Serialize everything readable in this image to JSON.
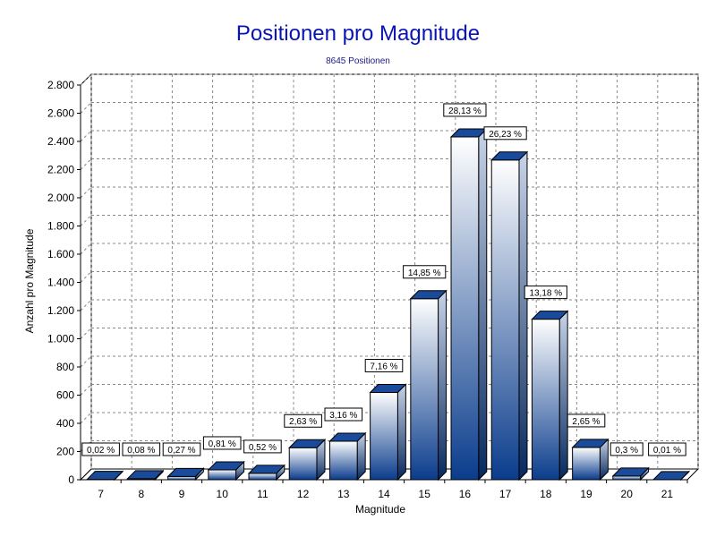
{
  "chart_data": {
    "type": "bar",
    "title": "Positionen pro Magnitude",
    "subtitle": "8645 Positionen",
    "xlabel": "Magnitude",
    "ylabel": "Anzahl pro Magnitude",
    "categories": [
      "7",
      "8",
      "9",
      "10",
      "11",
      "12",
      "13",
      "14",
      "15",
      "16",
      "17",
      "18",
      "19",
      "20",
      "21"
    ],
    "values": [
      2,
      7,
      23,
      70,
      45,
      227,
      273,
      619,
      1284,
      2432,
      2268,
      1139,
      229,
      26,
      1
    ],
    "data_labels": [
      "0,02 %",
      "0,08 %",
      "0,27 %",
      "0,81 %",
      "0,52 %",
      "2,63 %",
      "3,16 %",
      "7,16 %",
      "14,85 %",
      "28,13 %",
      "26,23 %",
      "13,18 %",
      "2,65 %",
      "0,3 %",
      "0,01 %"
    ],
    "ylim": [
      0,
      2800
    ],
    "yticks": [
      0,
      200,
      400,
      600,
      800,
      1000,
      1200,
      1400,
      1600,
      1800,
      2000,
      2200,
      2400,
      2600,
      2800
    ],
    "ytick_labels": [
      "0",
      "200",
      "400",
      "600",
      "800",
      "1.000",
      "1.200",
      "1.400",
      "1.600",
      "1.800",
      "2.000",
      "2.200",
      "2.400",
      "2.600",
      "2.800"
    ],
    "grid": true,
    "legend": "none",
    "colors": {
      "bar_top": "#ffffff",
      "bar_bottom": "#0a3c8c",
      "title": "#0a14b4",
      "grid": "#888888"
    }
  }
}
